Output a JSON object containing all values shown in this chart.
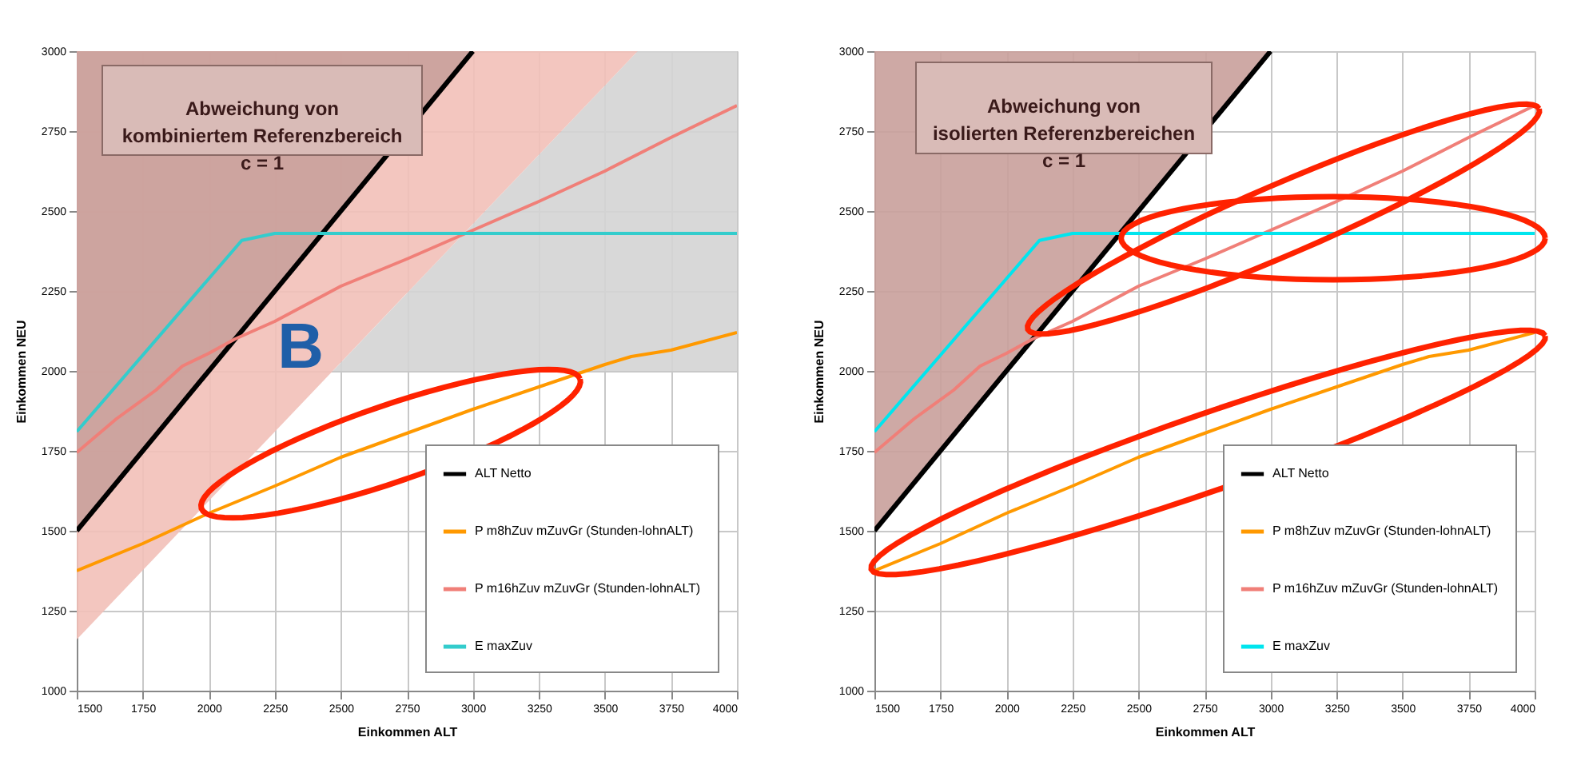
{
  "chart_data": [
    {
      "type": "line",
      "xlabel": "Einkommen ALT",
      "ylabel": "Einkommen NEU",
      "xlim": [
        1500,
        4000
      ],
      "ylim": [
        1000,
        3000
      ],
      "xticks": [
        1500,
        1750,
        2000,
        2250,
        2500,
        2750,
        3000,
        3250,
        3500,
        3750,
        4000
      ],
      "yticks": [
        1000,
        1250,
        1500,
        1750,
        2000,
        2250,
        2500,
        2750,
        3000
      ],
      "grid": true,
      "legend": "bottom right",
      "annotations": [
        "Abweichung von\nkombiniertem Referenzbereich\nc = 1",
        "B"
      ],
      "series": [
        {
          "type": "line",
          "name": "ALT Netto",
          "color": "#000000",
          "x": [
            1500,
            3000
          ],
          "values": [
            1500,
            3000
          ]
        },
        {
          "type": "line",
          "name": "P m8hZuv mZuvGr (Stunden-lohnALT)",
          "color": "#ff9900",
          "x": [
            1500,
            1750,
            2000,
            2250,
            2500,
            2750,
            3000,
            3250,
            3375,
            3500,
            3600,
            3750,
            4000
          ],
          "values": [
            1375,
            1460,
            1555,
            1640,
            1730,
            1805,
            1880,
            1950,
            1985,
            2020,
            2045,
            2065,
            2120
          ]
        },
        {
          "type": "line",
          "name": "P m16hZuv mZuvGr (Stunden-lohnALT)",
          "color": "#f07f78",
          "x": [
            1500,
            1650,
            1800,
            1900,
            2000,
            2100,
            2250,
            2500,
            2750,
            3000,
            3250,
            3500,
            3750,
            4000
          ],
          "values": [
            1745,
            1850,
            1940,
            2015,
            2055,
            2100,
            2155,
            2265,
            2350,
            2440,
            2530,
            2625,
            2730,
            2830
          ]
        },
        {
          "type": "line",
          "name": "E maxZuv",
          "color": "#33cccc",
          "x": [
            1500,
            2125,
            2250,
            4000
          ],
          "values": [
            1810,
            2408,
            2430,
            2430
          ]
        }
      ]
    },
    {
      "type": "line",
      "xlabel": "Einkommen ALT",
      "ylabel": "Einkommen NEU",
      "xlim": [
        1500,
        4000
      ],
      "ylim": [
        1000,
        3000
      ],
      "xticks": [
        1500,
        1750,
        2000,
        2250,
        2500,
        2750,
        3000,
        3250,
        3500,
        3750,
        4000
      ],
      "yticks": [
        1000,
        1250,
        1500,
        1750,
        2000,
        2250,
        2500,
        2750,
        3000
      ],
      "grid": true,
      "legend": "bottom right",
      "annotations": [
        "Abweichung von\nisolierten Referenzbereichen\nc = 1"
      ],
      "series": [
        {
          "type": "line",
          "name": "ALT Netto",
          "color": "#000000",
          "x": [
            1500,
            3000
          ],
          "values": [
            1500,
            3000
          ]
        },
        {
          "type": "line",
          "name": "P m8hZuv mZuvGr (Stunden-lohnALT)",
          "color": "#ff9900",
          "x": [
            1500,
            1750,
            2000,
            2250,
            2500,
            2750,
            3000,
            3250,
            3375,
            3500,
            3600,
            3750,
            4000
          ],
          "values": [
            1375,
            1460,
            1555,
            1640,
            1730,
            1805,
            1880,
            1950,
            1985,
            2020,
            2045,
            2065,
            2120
          ]
        },
        {
          "type": "line",
          "name": "P m16hZuv mZuvGr (Stunden-lohnALT)",
          "color": "#f07f78",
          "x": [
            1500,
            1650,
            1800,
            1900,
            2000,
            2100,
            2250,
            2500,
            2750,
            3000,
            3250,
            3500,
            3750,
            4000
          ],
          "values": [
            1745,
            1850,
            1940,
            2015,
            2055,
            2100,
            2155,
            2265,
            2350,
            2440,
            2530,
            2625,
            2730,
            2830
          ]
        },
        {
          "type": "line",
          "name": "E maxZuv",
          "color": "#00e5ee",
          "x": [
            1500,
            2125,
            2250,
            4000
          ],
          "values": [
            1810,
            2408,
            2430,
            2430
          ]
        }
      ]
    }
  ]
}
